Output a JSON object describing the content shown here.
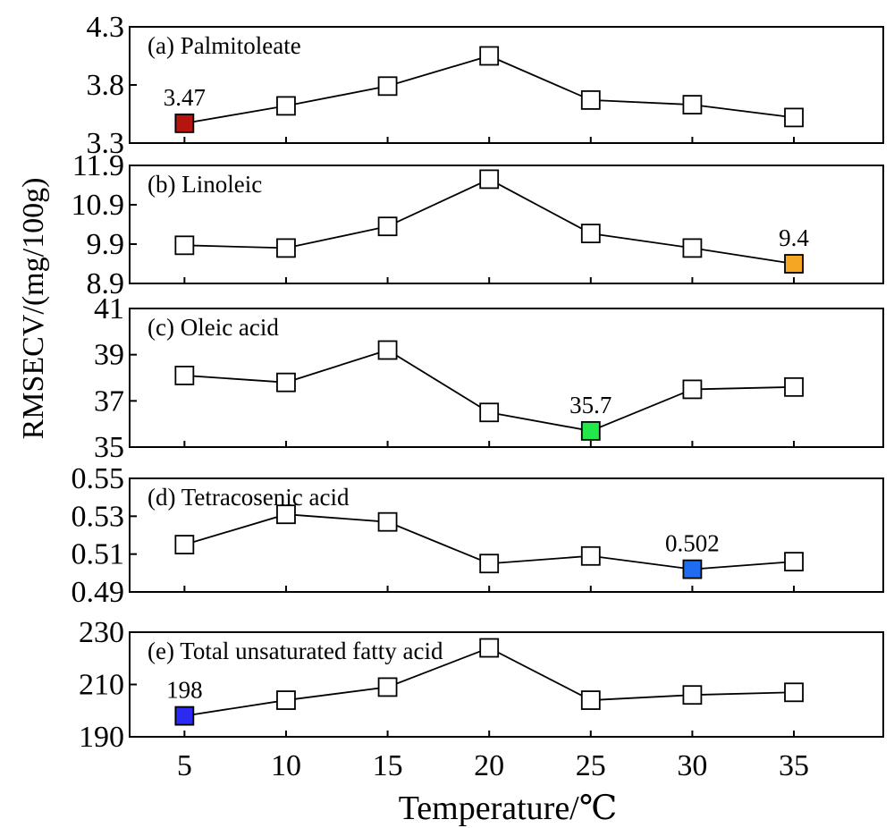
{
  "chart_data": {
    "type": "line",
    "x": [
      5,
      10,
      15,
      20,
      25,
      30,
      35
    ],
    "xlabel": "Temperature/℃",
    "ylabel": "RMSECV/(mg/100g)",
    "panels": [
      {
        "title": "(a) Palmitoleate",
        "ticks": [
          "3.3",
          "3.8",
          "4.3"
        ],
        "ylim": [
          3.3,
          4.3
        ],
        "values": [
          3.47,
          3.62,
          3.79,
          4.05,
          3.67,
          3.63,
          3.52
        ],
        "best_index": 0,
        "best_label": "3.47",
        "best_color": "#b5150e"
      },
      {
        "title": "(b) Linoleic",
        "ticks": [
          "8.9",
          "9.9",
          "10.9",
          "11.9"
        ],
        "ylim": [
          8.9,
          11.9
        ],
        "values": [
          9.87,
          9.8,
          10.35,
          11.55,
          10.17,
          9.8,
          9.4
        ],
        "best_index": 6,
        "best_label": "9.4",
        "best_color": "#f5a623"
      },
      {
        "title": "(c) Oleic acid",
        "ticks": [
          "35",
          "37",
          "39",
          "41"
        ],
        "ylim": [
          35,
          41
        ],
        "values": [
          38.1,
          37.8,
          39.2,
          36.5,
          35.7,
          37.5,
          37.6
        ],
        "best_index": 4,
        "best_label": "35.7",
        "best_color": "#22e84a"
      },
      {
        "title": "(d) Tetracosenic acid",
        "ticks": [
          "0.49",
          "0.51",
          "0.53",
          "0.55"
        ],
        "ylim": [
          0.49,
          0.55
        ],
        "values": [
          0.515,
          0.531,
          0.527,
          0.505,
          0.509,
          0.502,
          0.506
        ],
        "best_index": 5,
        "best_label": "0.502",
        "best_color": "#1f6cf0"
      },
      {
        "title": "(e) Total unsaturated fatty acid",
        "ticks": [
          "190",
          "210",
          "230"
        ],
        "ylim": [
          190,
          230
        ],
        "values": [
          198,
          204,
          209,
          224,
          204,
          206,
          207
        ],
        "best_index": 0,
        "best_label": "198",
        "best_color": "#2a2af0"
      }
    ]
  }
}
